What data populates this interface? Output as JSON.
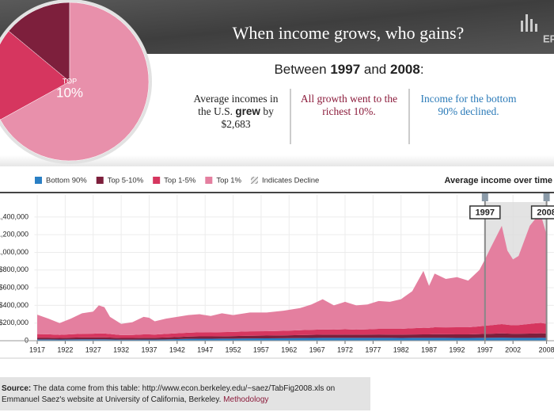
{
  "header": {
    "title": "When income grows, who gains?",
    "logo": "EPI"
  },
  "summary": {
    "heading": [
      "Between ",
      "1997",
      " and ",
      "2008",
      ":"
    ],
    "columns": [
      [
        "Average incomes in the U.S. ",
        "grew",
        " by $2,683"
      ],
      [
        "All growth went to the richest 10%."
      ],
      [
        "Income for the bottom 90% declined."
      ]
    ]
  },
  "chart_data": [
    {
      "type": "area",
      "title": "Average income over time",
      "decline_label": "Indicates Decline",
      "x": [
        1917,
        1919,
        1921,
        1923,
        1925,
        1927,
        1928,
        1929,
        1930,
        1932,
        1934,
        1936,
        1937,
        1938,
        1940,
        1942,
        1944,
        1946,
        1948,
        1950,
        1952,
        1955,
        1958,
        1961,
        1964,
        1966,
        1968,
        1970,
        1972,
        1974,
        1976,
        1978,
        1980,
        1982,
        1984,
        1986,
        1987,
        1988,
        1990,
        1992,
        1994,
        1996,
        1997,
        1998,
        2000,
        2001,
        2002,
        2003,
        2004,
        2005,
        2006,
        2007,
        2008
      ],
      "series": [
        {
          "name": "Bottom 90%",
          "color": "#2a7fc4",
          "values": [
            15000,
            15000,
            13000,
            15000,
            16000,
            16000,
            16000,
            16000,
            15000,
            12000,
            12000,
            14000,
            14000,
            14000,
            15000,
            18000,
            21000,
            22000,
            22000,
            23000,
            24000,
            26000,
            27000,
            28000,
            30000,
            31000,
            32000,
            32000,
            33000,
            32000,
            32000,
            33000,
            32000,
            31000,
            32000,
            32000,
            32000,
            33000,
            32000,
            31000,
            31000,
            32000,
            33000,
            34000,
            35000,
            34000,
            33000,
            33000,
            33000,
            33000,
            33000,
            34000,
            33000
          ]
        },
        {
          "name": "Top 5-10%",
          "color": "#7d1f3c",
          "values": [
            20000,
            20000,
            18000,
            20000,
            21000,
            21000,
            22000,
            22000,
            21000,
            19000,
            19000,
            20000,
            20000,
            20000,
            22000,
            24000,
            26000,
            27000,
            27000,
            28000,
            29000,
            30000,
            31000,
            32000,
            34000,
            35000,
            36000,
            36000,
            37000,
            36000,
            37000,
            38000,
            38000,
            38000,
            39000,
            40000,
            40000,
            41000,
            41000,
            41000,
            41000,
            43000,
            44000,
            45000,
            48000,
            47000,
            46000,
            46000,
            47000,
            48000,
            49000,
            50000,
            49000
          ]
        },
        {
          "name": "Top 1-5%",
          "color": "#d6365f",
          "values": [
            40000,
            38000,
            35000,
            38000,
            42000,
            43000,
            45000,
            44000,
            40000,
            33000,
            34000,
            38000,
            38000,
            36000,
            40000,
            42000,
            44000,
            46000,
            45000,
            47000,
            47000,
            50000,
            50000,
            52000,
            55000,
            57000,
            60000,
            58000,
            60000,
            58000,
            60000,
            63000,
            64000,
            66000,
            70000,
            75000,
            74000,
            78000,
            78000,
            80000,
            80000,
            88000,
            92000,
            96000,
            105000,
            100000,
            96000,
            98000,
            104000,
            110000,
            115000,
            118000,
            110000
          ]
        },
        {
          "name": "Top 1%",
          "color": "#e47f9f",
          "values": [
            220000,
            177000,
            134000,
            177000,
            231000,
            250000,
            317000,
            298000,
            194000,
            126000,
            145000,
            198000,
            188000,
            150000,
            173000,
            186000,
            199000,
            205000,
            186000,
            212000,
            190000,
            214000,
            212000,
            228000,
            251000,
            287000,
            342000,
            274000,
            310000,
            274000,
            281000,
            316000,
            306000,
            335000,
            419000,
            643000,
            474000,
            608000,
            549000,
            568000,
            528000,
            637000,
            751000,
            875000,
            1112000,
            839000,
            745000,
            783000,
            946000,
            1109000,
            1183000,
            1218000,
            1008000
          ]
        }
      ],
      "highlight": [
        1997,
        2008
      ],
      "xlim": [
        1916.5,
        2009.3
      ],
      "xticks": [
        1917,
        1922,
        1927,
        1932,
        1937,
        1942,
        1947,
        1952,
        1957,
        1962,
        1967,
        1972,
        1977,
        1982,
        1987,
        1992,
        1997,
        2002,
        2008
      ],
      "ylim": [
        0,
        1650000
      ],
      "yticks": [
        0,
        {
          "value": 200000,
          "label": "$200,000"
        },
        {
          "value": 400000,
          "label": "$400,000"
        },
        {
          "value": 600000,
          "label": "$600,000"
        },
        {
          "value": 800000,
          "label": "$800,000"
        },
        {
          "value": 1000000,
          "label": "1,000,000"
        },
        {
          "value": 1200000,
          "label": "1,200,000"
        },
        {
          "value": 1400000,
          "label": "1,400,000"
        }
      ],
      "grid": true
    },
    {
      "type": "pie",
      "label_top": "TOP",
      "label_main": "10%",
      "values": [
        14,
        19,
        67
      ],
      "colors": [
        "#7d1f3c",
        "#d6365f",
        "#e890ab"
      ]
    }
  ],
  "source": [
    "Source:",
    " The data come from this table: http://www.econ.berkeley.edu/~saez/TabFig2008.xls on Emmanuel Saez's website at University of California, Berkeley. ",
    "Methodology"
  ]
}
